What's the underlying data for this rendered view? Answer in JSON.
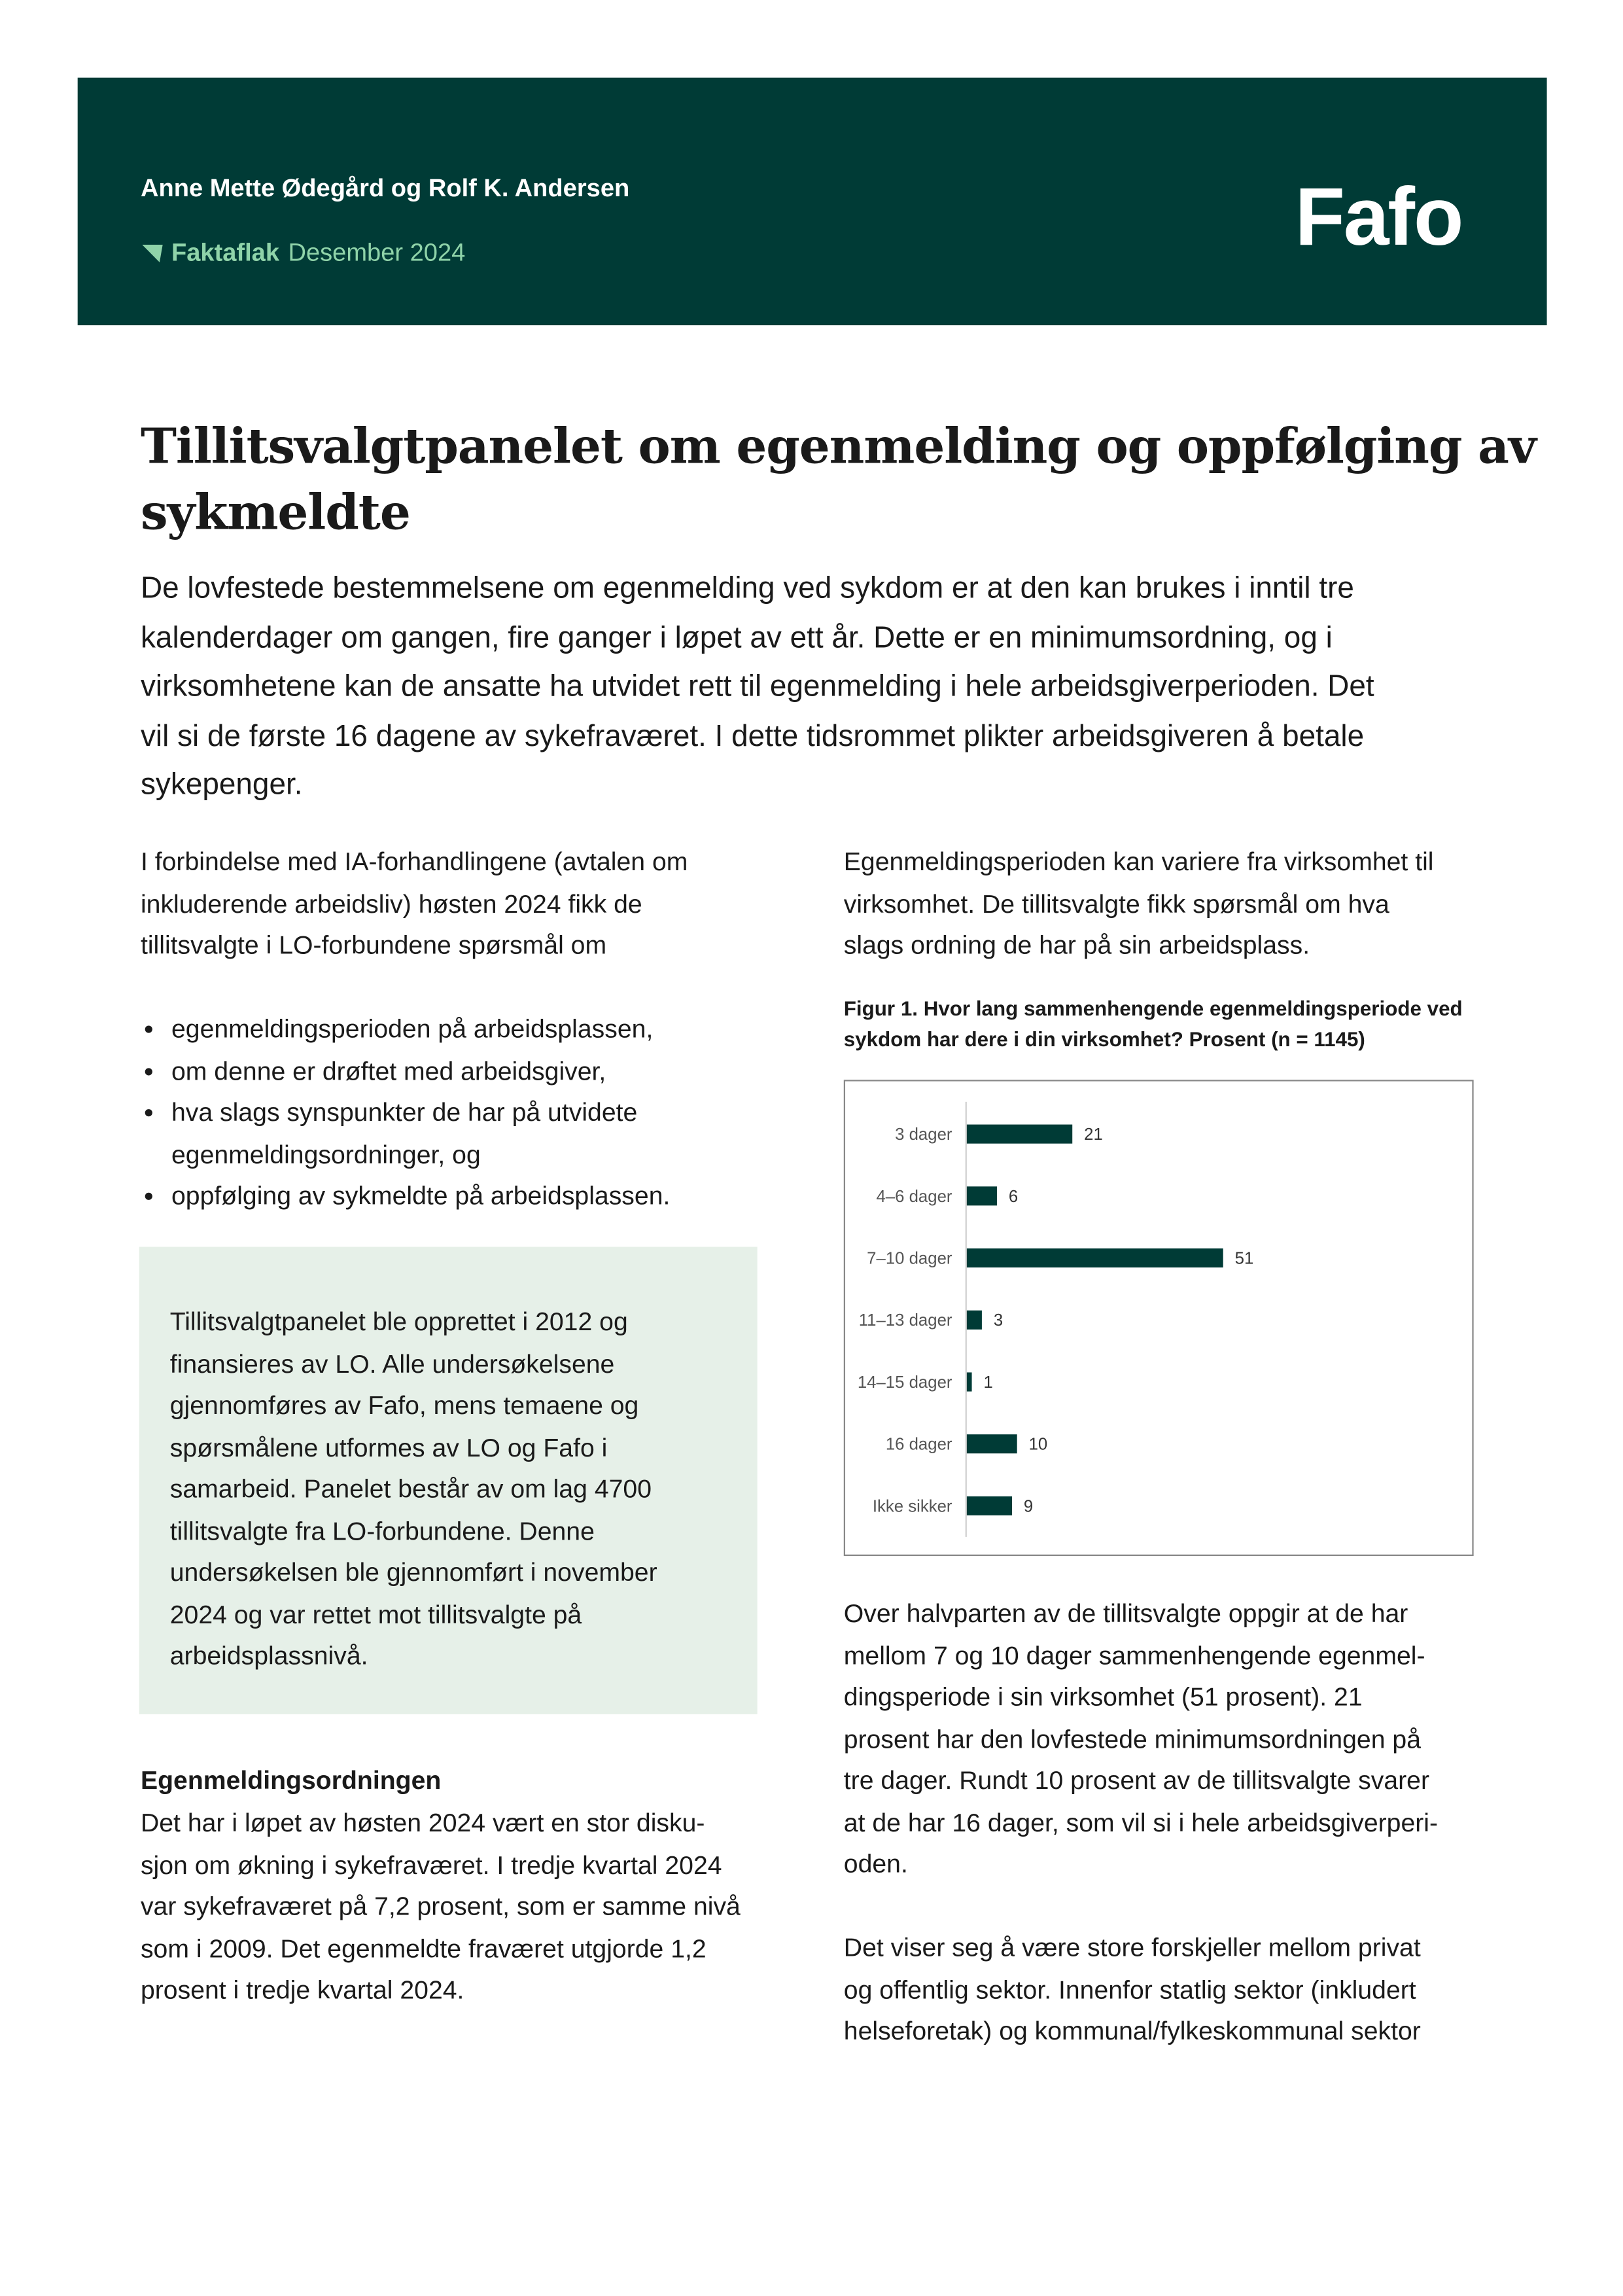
{
  "header": {
    "authors": "Anne Mette Ødegård og Rolf K. Andersen",
    "series": "Faktaflak",
    "date": "Desember 2024",
    "logo": "Fafo",
    "colors": {
      "background": "#003b36",
      "accent": "#8fd3a9"
    }
  },
  "title": [
    "Tillitsvalgtpanelet om egenmelding og oppfølging av",
    "sykmeldte"
  ],
  "intro": [
    "De lovfestede bestemmelsene om egenmelding ved sykdom er at den kan brukes i inntil tre",
    "kalenderdager om gangen, fire ganger i løpet av ett år. Dette er en minimumsordning, og i",
    "virksomhetene kan de ansatte ha utvidet rett til egenmelding i hele arbeidsgiverperioden. Det",
    "vil si de første 16 dagene av sykefraværet. I dette tidsrommet plikter arbeidsgiveren å betale",
    "sykepenger."
  ],
  "left": {
    "p1": [
      "I forbindelse med IA-forhandlingene (avtalen om",
      "inkluderende arbeidsliv) høsten 2024 fikk de",
      "tillitsvalgte i LO-forbundene spørsmål om"
    ],
    "bullets": [
      [
        "egenmeldingsperioden på arbeidsplassen,"
      ],
      [
        "om denne er drøftet med arbeidsgiver,"
      ],
      [
        "hva slags synspunkter de har på utvidete",
        "egenmeldingsordninger, og"
      ],
      [
        "oppfølging av sykmeldte på arbeidsplassen."
      ]
    ],
    "infobox": [
      "Tillitsvalgtpanelet ble opprettet i 2012 og",
      "finansieres av LO. Alle undersøkelsene",
      "gjennomføres av Fafo, mens temaene og",
      "spørsmålene utformes av LO og Fafo i",
      "samarbeid. Panelet består av om lag 4700",
      "tillitsvalgte fra LO-forbundene. Denne",
      "undersøkelsen ble gjennomført i november",
      "2024 og var rettet mot tillitsvalgte på",
      "arbeidsplassnivå."
    ],
    "heading": "Egenmeldingsordningen",
    "p2": [
      "Det har i løpet av høsten 2024 vært en stor disku-",
      "sjon om økning i sykefraværet. I tredje kvartal 2024",
      "var sykefraværet på 7,2 prosent, som er samme nivå",
      "som i 2009. Det egenmeldte fraværet utgjorde 1,2",
      "prosent i tredje kvartal 2024."
    ]
  },
  "right": {
    "p1": [
      "Egenmeldingsperioden kan variere fra virksomhet til",
      "virksomhet. De tillitsvalgte fikk spørsmål om hva",
      "slags ordning de har på sin arbeidsplass."
    ],
    "p2": [
      "Over halvparten av de tillitsvalgte oppgir at de har",
      "mellom 7 og 10 dager sammenhengende egenmel-",
      "dingsperiode i sin virksomhet (51 prosent). 21",
      "prosent har den lovfestede minimumsordningen på",
      "tre dager. Rundt 10 prosent av de tillitsvalgte svarer",
      "at de har 16 dager, som vil si i hele arbeidsgiverperi-",
      "oden."
    ],
    "p3": [
      "Det viser seg å være store forskjeller mellom privat",
      "og offentlig sektor. Innenfor statlig sektor (inkludert",
      "helseforetak) og kommunal/fylkeskommunal sektor"
    ]
  },
  "chart_data": {
    "type": "bar",
    "orientation": "horizontal",
    "title": [
      "Figur 1. Hvor lang sammenhengende egenmeldingsperiode ved",
      "sykdom har dere i din virksomhet? Prosent  (n = 1145)"
    ],
    "categories": [
      "3 dager",
      "4–6 dager",
      "7–10 dager",
      "11–13 dager",
      "14–15 dager",
      "16 dager",
      "Ikke sikker"
    ],
    "values": [
      21,
      6,
      51,
      3,
      1,
      10,
      9
    ],
    "xlim": [
      0,
      51
    ],
    "grid": false,
    "data_labels": true,
    "color": "#003b36"
  }
}
